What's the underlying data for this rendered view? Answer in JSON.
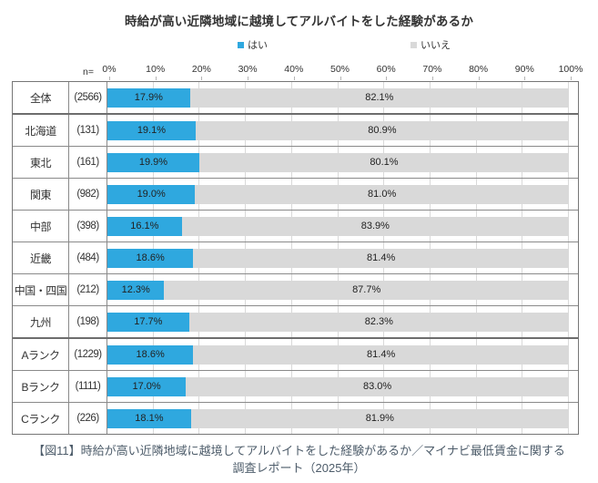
{
  "title": "時給が高い近隣地域に越境してアルバイトをした経験があるか",
  "legend": [
    {
      "label": "はい",
      "color": "#2fa8df"
    },
    {
      "label": "いいえ",
      "color": "#d9d9d9"
    }
  ],
  "axis": {
    "n_label": "n=",
    "ticks": [
      "0%",
      "10%",
      "20%",
      "30%",
      "40%",
      "50%",
      "60%",
      "70%",
      "80%",
      "90%",
      "100%"
    ]
  },
  "chart_data": {
    "type": "bar",
    "orientation": "horizontal",
    "stacked": true,
    "title": "時給が高い近隣地域に越境してアルバイトをした経験があるか",
    "xlim": [
      0,
      100
    ],
    "grid": true,
    "legend_position": "top",
    "categories": [
      "全体",
      "北海道",
      "東北",
      "関東",
      "中部",
      "近畿",
      "中国・四国",
      "九州",
      "Aランク",
      "Bランク",
      "Cランク"
    ],
    "n_values": [
      "(2566)",
      "(131)",
      "(161)",
      "(982)",
      "(398)",
      "(484)",
      "(212)",
      "(198)",
      "(1229)",
      "(1111)",
      "(226)"
    ],
    "series": [
      {
        "name": "はい",
        "color": "#2fa8df",
        "values": [
          17.9,
          19.1,
          19.9,
          19.0,
          16.1,
          18.6,
          12.3,
          17.7,
          18.6,
          17.0,
          18.1
        ]
      },
      {
        "name": "いいえ",
        "color": "#d9d9d9",
        "values": [
          82.1,
          80.9,
          80.1,
          81.0,
          83.9,
          81.4,
          87.7,
          82.3,
          81.4,
          83.0,
          81.9
        ]
      }
    ]
  },
  "caption": {
    "line1": "【図11】時給が高い近隣地域に越境してアルバイトをした経験があるか／マイナビ最低賃金に関する",
    "line2": "調査レポート（2025年）"
  }
}
